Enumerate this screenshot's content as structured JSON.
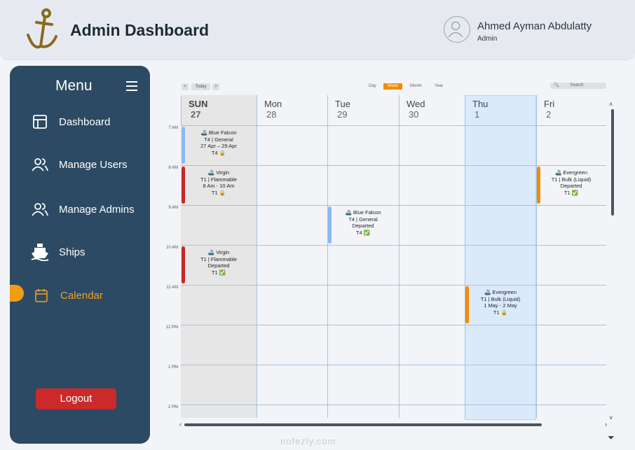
{
  "header": {
    "title": "Admin Dashboard",
    "user_name": "Ahmed Ayman Abdulatty",
    "user_role": "Admin"
  },
  "sidebar": {
    "title": "Menu",
    "items": [
      {
        "label": "Dashboard",
        "icon": "layout-icon"
      },
      {
        "label": "Manage Users",
        "icon": "users-icon"
      },
      {
        "label": "Manage Admins",
        "icon": "users-icon"
      },
      {
        "label": "Ships",
        "icon": "ship-icon"
      },
      {
        "label": "Calendar",
        "icon": "calendar-icon",
        "active": true
      }
    ],
    "logout": "Logout"
  },
  "calendar": {
    "nav": {
      "prev": "<",
      "today": "Today",
      "next": ">"
    },
    "views": [
      "Day",
      "Week",
      "Month",
      "Year"
    ],
    "active_view": "Week",
    "search_placeholder": "Search",
    "days": [
      {
        "name": "SUN",
        "date": "27"
      },
      {
        "name": "Mon",
        "date": "28"
      },
      {
        "name": "Tue",
        "date": "29"
      },
      {
        "name": "Wed",
        "date": "30"
      },
      {
        "name": "Thu",
        "date": "1"
      },
      {
        "name": "Fri",
        "date": "2"
      }
    ],
    "times": [
      "7 AM",
      "8 AM",
      "9 AM",
      "10 AM",
      "11 AM",
      "12 PM",
      "1 PM",
      "2 PM"
    ],
    "events": [
      {
        "day": 0,
        "slot": 0,
        "color": "#8ab8f5",
        "lines": [
          "🚢 Blue Falcon",
          "T4 | General",
          "27 Apr – 29 Apr",
          "T4 🔒"
        ]
      },
      {
        "day": 0,
        "slot": 1,
        "color": "#c62828",
        "lines": [
          "🚢 Virgin",
          "T1 | Flammable",
          "8 Am - 10 Am",
          "T1 🔒"
        ]
      },
      {
        "day": 2,
        "slot": 2,
        "color": "#8ab8f5",
        "lines": [
          "🚢 Blue Falcon",
          "T4 | General",
          "Departed",
          "T4 ✅"
        ]
      },
      {
        "day": 0,
        "slot": 3,
        "color": "#c62828",
        "lines": [
          "🚢 Virgin",
          "T1 | Flammable",
          "Departed",
          "T1 ✅"
        ]
      },
      {
        "day": 4,
        "slot": 4,
        "color": "#f08c00",
        "lines": [
          "🚢 Evergreen",
          "T1 | Bulk (Liquid)",
          "1 May - 2 May",
          "T1 🔒"
        ]
      },
      {
        "day": 5,
        "slot": 1,
        "color": "#f08c00",
        "lines": [
          "🚢 Evergreen",
          "T1 | Bulk (Liquid)",
          "Departed",
          "T1 ✅"
        ]
      }
    ]
  },
  "watermark": "nofezly.com",
  "colors": {
    "sidebar": "#2c4a63",
    "accent": "#f08c00",
    "logout": "#cc2a2a"
  }
}
